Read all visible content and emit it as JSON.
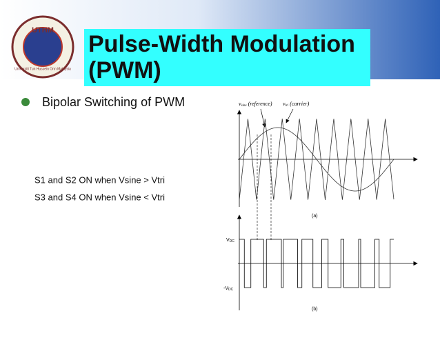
{
  "logo": {
    "acronym": "UTHM",
    "name": "Universiti Tun Hussein Onn Malaysia"
  },
  "header": {
    "title_lines": [
      "Pulse-Width Modulation",
      "(PWM)"
    ]
  },
  "bullet": "Bipolar Switching of PWM",
  "conditions": [
    "S1 and S2  ON when Vsine > Vtri",
    "S3 and S4 ON when Vsine < Vtri"
  ],
  "diagram": {
    "reference_label": {
      "symbol": "v",
      "sub": "sine",
      "text": " (reference)"
    },
    "carrier_label": {
      "symbol": "v",
      "sub": "tri",
      "text": " (carrier)"
    },
    "top_caption": "(a)",
    "vdc_label": {
      "symbol": "V",
      "sub": "DC"
    },
    "neg_vdc_label": {
      "symbol": "-V",
      "sub": "DC"
    },
    "bottom_caption": "(b)"
  }
}
